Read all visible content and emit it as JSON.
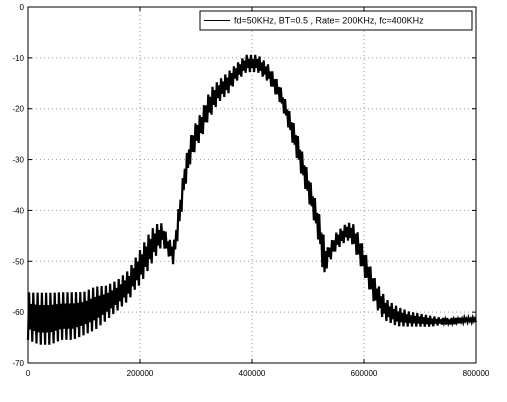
{
  "chart_data": {
    "type": "line",
    "title": "",
    "xlabel": "",
    "ylabel": "",
    "xlim": [
      0,
      800000
    ],
    "ylim": [
      -70,
      0
    ],
    "grid": true,
    "legend_position": "top-right",
    "x_ticks": [
      0,
      200000,
      400000,
      600000,
      800000
    ],
    "x_tick_labels": [
      "0",
      "200000",
      "400000",
      "600000",
      "800000"
    ],
    "y_ticks": [
      0,
      -10,
      -20,
      -30,
      -40,
      -50,
      -60,
      -70
    ],
    "y_tick_labels": [
      "0",
      "-10",
      "-20",
      "-30",
      "-40",
      "-50",
      "-60",
      "-70"
    ],
    "series": [
      {
        "name": "fd=50KHz, BT=0.5 , Rate= 200KHz, fc=400KHz",
        "color": "#000000",
        "envelope": {
          "x": [
            0,
            20000,
            40000,
            60000,
            80000,
            100000,
            120000,
            140000,
            160000,
            180000,
            190000,
            200000,
            210000,
            220000,
            230000,
            240000,
            250000,
            260000,
            270000,
            280000,
            290000,
            300000,
            310000,
            320000,
            330000,
            340000,
            350000,
            360000,
            370000,
            380000,
            390000,
            400000,
            410000,
            420000,
            430000,
            440000,
            450000,
            460000,
            470000,
            480000,
            490000,
            500000,
            510000,
            520000,
            530000,
            535000,
            540000,
            550000,
            560000,
            570000,
            580000,
            590000,
            600000,
            610000,
            620000,
            630000,
            640000,
            660000,
            680000,
            700000,
            720000,
            740000,
            760000,
            780000,
            800000
          ],
          "upper": [
            -55,
            -55,
            -55,
            -55,
            -55,
            -55,
            -54,
            -54,
            -53,
            -51,
            -49,
            -47,
            -45,
            -43,
            -42,
            -42,
            -45,
            -46,
            -38,
            -30,
            -25,
            -22,
            -20,
            -17,
            -15,
            -14,
            -13,
            -12,
            -11,
            -10,
            -9,
            -9,
            -9,
            -10,
            -11,
            -13,
            -15,
            -18,
            -21,
            -24,
            -28,
            -32,
            -36,
            -40,
            -45,
            -47,
            -46,
            -44,
            -43,
            -42,
            -42,
            -44,
            -47,
            -50,
            -53,
            -55,
            -57,
            -58.5,
            -59.5,
            -60,
            -60.5,
            -61,
            -61,
            -61,
            -61
          ],
          "lower": [
            -66,
            -67,
            -67,
            -66,
            -66,
            -65,
            -64,
            -62,
            -60,
            -58,
            -56,
            -55,
            -53,
            -51,
            -49,
            -47,
            -49,
            -51,
            -44,
            -36,
            -31,
            -28,
            -26,
            -23,
            -21,
            -19,
            -18,
            -17,
            -15,
            -14,
            -13,
            -13,
            -13,
            -14,
            -15,
            -17,
            -19,
            -22,
            -26,
            -30,
            -34,
            -38,
            -42,
            -47,
            -55,
            -50,
            -50,
            -48,
            -47,
            -46,
            -47,
            -50,
            -53,
            -56,
            -59,
            -61,
            -62,
            -63,
            -63,
            -63,
            -63,
            -62.5,
            -62.5,
            -62,
            -62
          ]
        }
      }
    ]
  }
}
